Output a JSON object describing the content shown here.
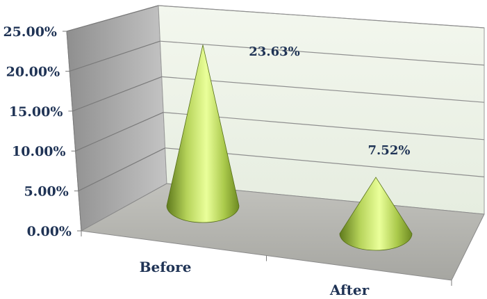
{
  "chart_data": {
    "type": "bar",
    "style": "3d-cone",
    "categories": [
      "Before",
      "After"
    ],
    "values": [
      23.63,
      7.52
    ],
    "data_labels": [
      "23.63%",
      "7.52%"
    ],
    "y_ticks": [
      "0.00%",
      "5.00%",
      "10.00%",
      "15.00%",
      "20.00%",
      "25.00%"
    ],
    "ylim": [
      0,
      25
    ],
    "grid": true,
    "legend": false,
    "title": "",
    "xlabel": "",
    "ylabel": "",
    "colors": {
      "cone_light": "#eaff9a",
      "cone_mid": "#b6d35a",
      "cone_dark": "#5f7a1c",
      "back_wall": "#eef3e8",
      "side_wall": "#a9a9a9",
      "floor": "#b3b3ae",
      "text": "#1f3355"
    }
  }
}
